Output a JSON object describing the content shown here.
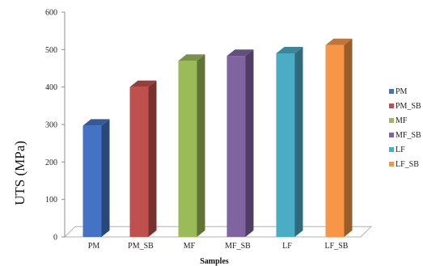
{
  "chart_data": {
    "type": "bar",
    "title": "",
    "xlabel": "Samples",
    "ylabel": "UTS (MPa)",
    "ylim": [
      0,
      600
    ],
    "yticks": [
      "0",
      "100",
      "200",
      "300",
      "400",
      "500",
      "600"
    ],
    "categories": [
      "PM",
      "PM_SB",
      "MF",
      "MF_SB",
      "LF",
      "LF_SB"
    ],
    "values": [
      297,
      400,
      470,
      483,
      490,
      512
    ],
    "colors": [
      "#4472c4",
      "#c0504d",
      "#9bbb59",
      "#8064a2",
      "#4bacc6",
      "#f79646"
    ],
    "legend": {
      "position": "right",
      "entries": [
        "PM",
        "PM_SB",
        "MF",
        "MF_SB",
        "LF",
        "LF_SB"
      ]
    },
    "grid": false,
    "style": "3d"
  }
}
